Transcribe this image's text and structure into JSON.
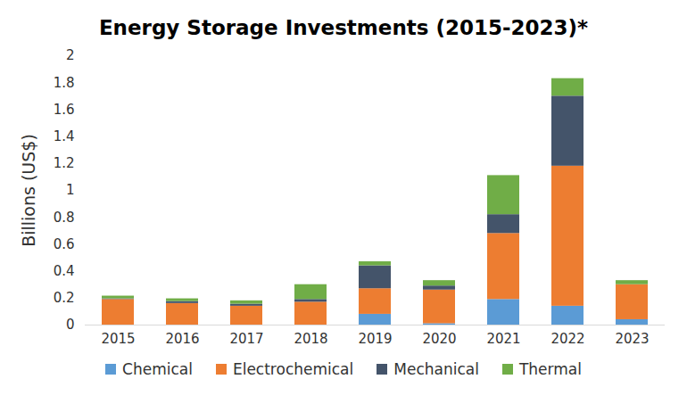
{
  "chart_data": {
    "type": "bar",
    "title": "Energy Storage Investments (2015-2023)*",
    "ylabel": "Billions (US$)",
    "categories": [
      "2015",
      "2016",
      "2017",
      "2018",
      "2019",
      "2020",
      "2021",
      "2022",
      "2023"
    ],
    "series": [
      {
        "name": "Chemical",
        "color": "#5b9bd5",
        "values": [
          0,
          0,
          0,
          0,
          0.08,
          0.01,
          0.19,
          0.14,
          0.04
        ]
      },
      {
        "name": "Electrochemical",
        "color": "#ed7d31",
        "values": [
          0.19,
          0.16,
          0.14,
          0.17,
          0.19,
          0.25,
          0.49,
          1.04,
          0.26
        ]
      },
      {
        "name": "Mechanical",
        "color": "#44546a",
        "values": [
          0.005,
          0.015,
          0.015,
          0.02,
          0.17,
          0.03,
          0.14,
          0.52,
          0
        ]
      },
      {
        "name": "Thermal",
        "color": "#70ad47",
        "values": [
          0.02,
          0.02,
          0.025,
          0.11,
          0.03,
          0.04,
          0.29,
          0.13,
          0.03
        ]
      }
    ],
    "ylim": [
      0,
      2
    ],
    "yticks": [
      0,
      0.2,
      0.4,
      0.6,
      0.8,
      1,
      1.2,
      1.4,
      1.6,
      1.8,
      2
    ],
    "stacked": true,
    "grid": false,
    "legend": "bottom"
  }
}
